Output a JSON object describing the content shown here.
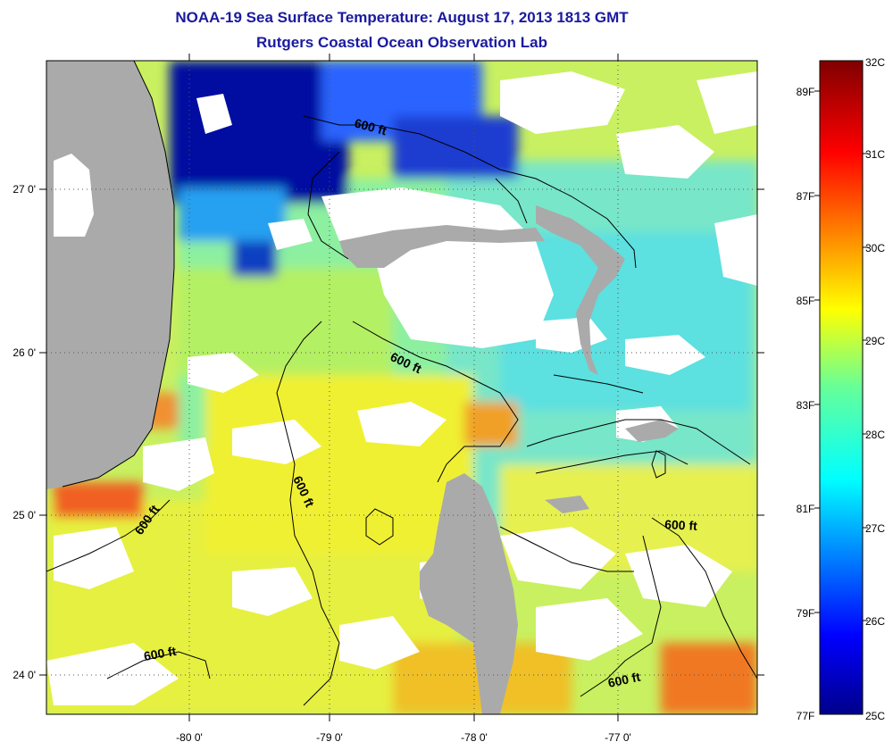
{
  "title": "NOAA-19 Sea Surface Temperature:  August 17, 2013 1813 GMT",
  "subtitle": "Rutgers Coastal Ocean Observation Lab",
  "lon_ticks": [
    "-80 0'",
    "-79 0'",
    "-78 0'",
    "-77 0'"
  ],
  "lat_ticks": [
    "27 0'",
    "26 0'",
    "25 0'",
    "24 0'"
  ],
  "contour_label": "600 ft",
  "colorbar": {
    "celsius": [
      "32C",
      "31C",
      "30C",
      "29C",
      "28C",
      "27C",
      "26C",
      "25C"
    ],
    "fahrenheit": [
      "89F",
      "87F",
      "85F",
      "83F",
      "81F",
      "79F",
      "77F"
    ]
  },
  "colors": {
    "land": "#aaaaaa",
    "cloud": "#ffffff",
    "title": "#1a1aa0"
  }
}
